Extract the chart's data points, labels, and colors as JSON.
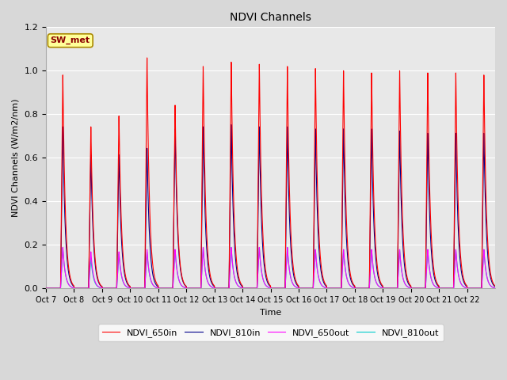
{
  "title": "NDVI Channels",
  "ylabel": "NDVI Channels (W/m2/nm)",
  "xlabel": "Time",
  "annotation": "SW_met",
  "ylim": [
    0.0,
    1.2
  ],
  "background_color": "#e8e8e8",
  "grid_color": "#ffffff",
  "series": {
    "NDVI_650in": {
      "color": "#ff0000",
      "lw": 0.8
    },
    "NDVI_810in": {
      "color": "#00008b",
      "lw": 0.8
    },
    "NDVI_650out": {
      "color": "#ff00ff",
      "lw": 0.8
    },
    "NDVI_810out": {
      "color": "#00cccc",
      "lw": 0.8
    }
  },
  "x_tick_labels": [
    "Oct 7",
    "Oct 8",
    "Oct 9",
    "Oct 10",
    "Oct 11",
    "Oct 12",
    "Oct 13",
    "Oct 14",
    "Oct 15",
    "Oct 16",
    "Oct 17",
    "Oct 18",
    "Oct 19",
    "Oct 20",
    "Oct 21",
    "Oct 22"
  ],
  "peaks_650in": [
    0.99,
    0.75,
    0.8,
    1.07,
    0.85,
    1.03,
    1.05,
    1.04,
    1.03,
    1.02,
    1.01,
    1.0,
    1.01,
    1.0,
    1.0,
    0.99
  ],
  "peaks_810in": [
    0.75,
    0.62,
    0.62,
    0.65,
    0.74,
    0.75,
    0.76,
    0.75,
    0.75,
    0.74,
    0.74,
    0.74,
    0.73,
    0.72,
    0.72,
    0.72
  ],
  "peaks_650out": [
    0.19,
    0.17,
    0.17,
    0.18,
    0.18,
    0.19,
    0.19,
    0.19,
    0.19,
    0.18,
    0.18,
    0.18,
    0.18,
    0.18,
    0.18,
    0.18
  ],
  "peaks_810out": [
    0.19,
    0.14,
    0.16,
    0.17,
    0.18,
    0.19,
    0.19,
    0.19,
    0.19,
    0.18,
    0.18,
    0.18,
    0.18,
    0.18,
    0.18,
    0.18
  ],
  "figsize": [
    6.4,
    4.8
  ],
  "dpi": 100
}
